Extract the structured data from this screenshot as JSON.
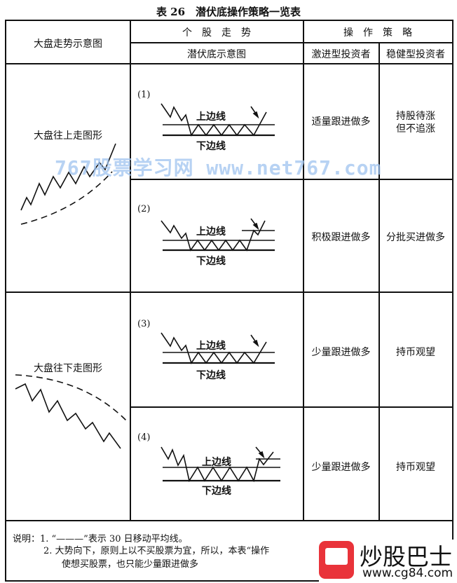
{
  "title": "表 26　潜伏底操作策略一览表",
  "header": {
    "market_col": "大盘走势示意图",
    "stock_group": "个　股　走　势",
    "stock_sub": "潜伏底示意图",
    "strategy_group": "操　作　策　略",
    "aggressive": "激进型投资者",
    "conservative": "稳健型投资者"
  },
  "market": {
    "up": "大盘往上走图形",
    "down": "大盘往下走图形"
  },
  "rows": [
    {
      "num": "(1)",
      "upper": "上边线",
      "lower": "下边线",
      "aggressive": "适量跟进做多",
      "conservative_1": "持股待涨",
      "conservative_2": "但不追涨"
    },
    {
      "num": "(2)",
      "upper": "上边线",
      "lower": "下边线",
      "aggressive": "积极跟进做多",
      "conservative_1": "分批买进做多",
      "conservative_2": ""
    },
    {
      "num": "(3)",
      "upper": "上边线",
      "lower": "下边线",
      "aggressive": "少量跟进做多",
      "conservative_1": "持币观望",
      "conservative_2": ""
    },
    {
      "num": "(4)",
      "upper": "上边线",
      "lower": "下边线",
      "aggressive": "少量跟进做多",
      "conservative_1": "持币观望",
      "conservative_2": ""
    }
  ],
  "notes": {
    "line1": "说明：1. “———”表示 30 日移动平均线。",
    "line2": "2. 大势向下，原则上以不买股票为宜，所以，本表“操作",
    "line3": "使想买股票，也只能少量跟进做多"
  },
  "watermark": "767股票学习网 www.net767.com",
  "logo": {
    "name": "炒股巴士",
    "url": "www.cg84.com",
    "color": "#e9333a"
  }
}
